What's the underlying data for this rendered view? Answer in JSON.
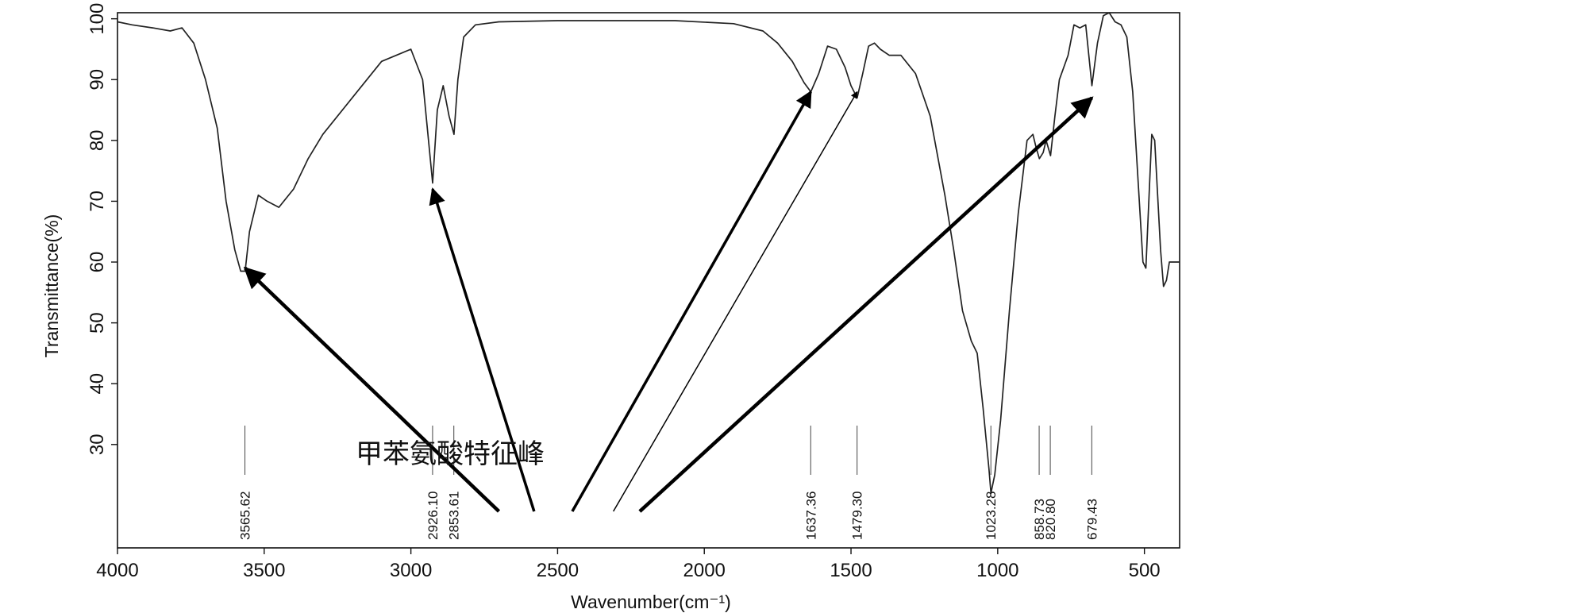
{
  "chart_data": {
    "type": "line",
    "xlabel": "Wavenumber(cm⁻¹)",
    "ylabel": "Transmittance(%)",
    "xlim": [
      4000,
      380
    ],
    "ylim": [
      13,
      101
    ],
    "x_ticks": [
      4000,
      3500,
      3000,
      2500,
      2000,
      1500,
      1000,
      500
    ],
    "y_ticks": [
      30,
      40,
      50,
      60,
      70,
      80,
      90,
      100
    ],
    "grid": false,
    "annotation": "甲苯氨酸特征峰",
    "peak_labels": [
      "3565.62",
      "2926.10",
      "2853.61",
      "1637.36",
      "1479.30",
      "1023.28",
      "858.73",
      "820.80",
      "679.43"
    ],
    "arrow_targets": [
      {
        "x": 3565,
        "y": 59
      },
      {
        "x": 2926,
        "y": 72
      },
      {
        "x": 1637,
        "y": 88
      },
      {
        "x": 1479,
        "y": 88
      },
      {
        "x": 679,
        "y": 87
      }
    ],
    "series": [
      {
        "x": [
          4000,
          3950,
          3880,
          3820,
          3780,
          3740,
          3700,
          3660,
          3630,
          3600,
          3580,
          3565,
          3550,
          3520,
          3490,
          3450,
          3400,
          3350,
          3300,
          3200,
          3100,
          3000,
          2960,
          2940,
          2926,
          2910,
          2890,
          2870,
          2853,
          2840,
          2820,
          2780,
          2700,
          2500,
          2300,
          2100,
          1900,
          1800,
          1750,
          1700,
          1660,
          1637,
          1610,
          1580,
          1550,
          1520,
          1500,
          1479,
          1460,
          1440,
          1420,
          1400,
          1370,
          1330,
          1280,
          1230,
          1180,
          1150,
          1120,
          1090,
          1070,
          1050,
          1030,
          1023,
          1010,
          990,
          960,
          930,
          900,
          880,
          870,
          858,
          845,
          835,
          820,
          805,
          790,
          760,
          740,
          720,
          700,
          679,
          660,
          640,
          620,
          600,
          580,
          560,
          540,
          520,
          505,
          495,
          485,
          475,
          465,
          455,
          445,
          435,
          425,
          415,
          405,
          395,
          385,
          380
        ],
        "y": [
          99.5,
          99,
          98.5,
          98,
          98.5,
          96,
          90,
          82,
          70,
          62,
          58.5,
          58.5,
          65,
          71,
          70,
          69,
          72,
          77,
          81,
          87,
          93,
          95,
          90,
          80,
          73,
          85,
          89,
          84,
          81,
          90,
          97,
          99,
          99.5,
          99.7,
          99.7,
          99.7,
          99.2,
          98,
          96,
          93,
          89.5,
          88,
          91,
          95.5,
          95,
          92,
          89,
          87,
          91,
          95.5,
          96,
          95,
          94,
          94,
          91,
          84,
          71,
          62,
          52,
          47,
          45,
          36,
          26,
          22,
          25,
          34,
          52,
          68,
          80,
          81,
          79,
          77,
          78,
          80,
          77.5,
          84,
          90,
          94,
          99,
          98.5,
          99,
          89,
          96,
          100.5,
          101,
          99.5,
          99,
          97,
          88,
          72,
          60,
          59,
          70,
          81,
          80,
          71,
          62,
          56,
          57,
          60,
          60,
          60,
          60,
          60
        ]
      }
    ]
  }
}
